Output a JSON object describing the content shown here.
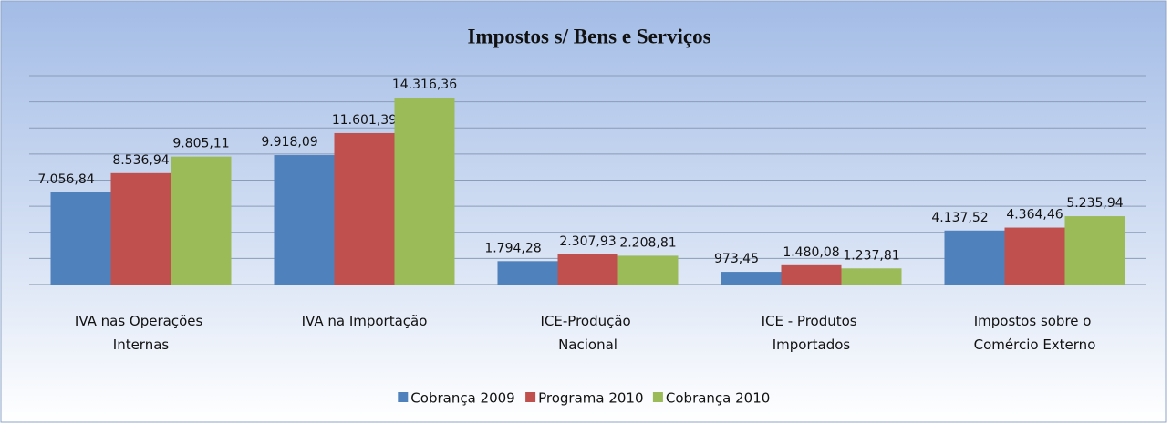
{
  "chart_data": {
    "type": "bar",
    "title": "Impostos s/ Bens e Serviços",
    "categories": [
      "IVA nas Operações Internas",
      "IVA na Importação",
      "ICE-Produção Nacional",
      "ICE - Produtos Importados",
      "Impostos sobre o Comércio Externo"
    ],
    "series": [
      {
        "name": "Cobrança 2009",
        "color": "#4f81bd",
        "values": [
          7056.84,
          9918.09,
          1794.28,
          973.45,
          4137.52
        ],
        "value_labels": [
          "7.056,84",
          "9.918,09",
          "1.794,28",
          "973,45",
          "4.137,52"
        ]
      },
      {
        "name": "Programa 2010",
        "color": "#c0504d",
        "values": [
          8536.94,
          11601.39,
          2307.93,
          1480.08,
          4364.46
        ],
        "value_labels": [
          "8.536,94",
          "11.601,39",
          "2.307,93",
          "1.480,08",
          "4.364,46"
        ]
      },
      {
        "name": "Cobrança 2010",
        "color": "#9bbb59",
        "values": [
          9805.11,
          14316.36,
          2208.81,
          1237.81,
          5235.94
        ],
        "value_labels": [
          "9.805,11",
          "14.316,36",
          "2.208,81",
          "1.237,81",
          "5.235,94"
        ]
      }
    ],
    "ylim": [
      0,
      16000
    ],
    "yticks": [
      0,
      2000,
      4000,
      6000,
      8000,
      10000,
      12000,
      14000,
      16000
    ],
    "grid": true,
    "legend": "bottom"
  }
}
